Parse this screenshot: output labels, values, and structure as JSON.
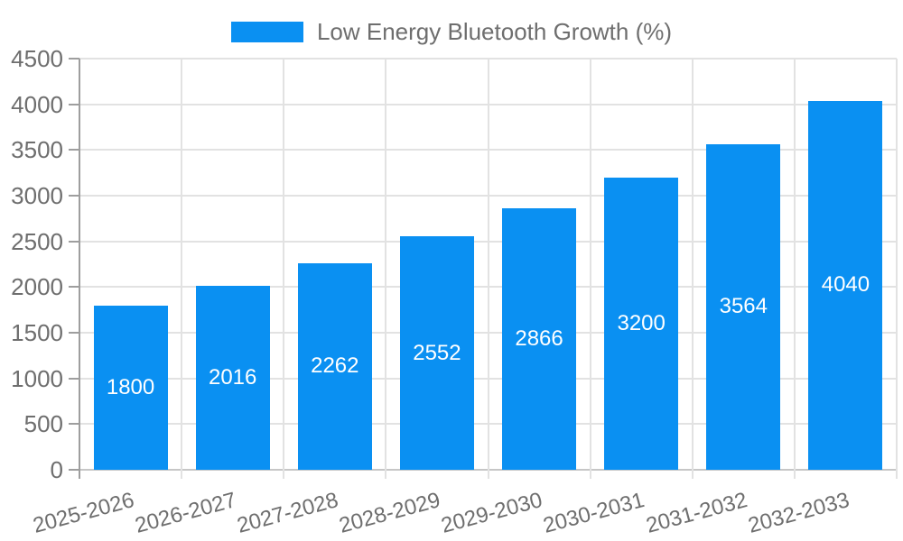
{
  "chart_data": {
    "type": "bar",
    "title": "",
    "series_name": "Low Energy Bluetooth Growth (%)",
    "categories": [
      "2025-2026",
      "2026-2027",
      "2027-2028",
      "2028-2029",
      "2029-2030",
      "2030-2031",
      "2031-2032",
      "2032-2033"
    ],
    "values": [
      1800,
      2016,
      2262,
      2552,
      2866,
      3200,
      3564,
      4040
    ],
    "value_labels": [
      "1800",
      "2016",
      "2262",
      "2552",
      "2866",
      "3200",
      "3564",
      "4040"
    ],
    "xlabel": "",
    "ylabel": "",
    "ylim": [
      0,
      4500
    ],
    "yticks": [
      0,
      500,
      1000,
      1500,
      2000,
      2500,
      3000,
      3500,
      4000,
      4500
    ],
    "grid": true,
    "legend_position": "top",
    "colors": {
      "bar": "#0a90f2",
      "value_label": "#ffffff",
      "axis_label": "#6e6e6e",
      "gridline": "#e2e2e2",
      "zero_line": "#c6c6c6",
      "axis_line": "#9e9e9e",
      "background": "#ffffff"
    }
  }
}
